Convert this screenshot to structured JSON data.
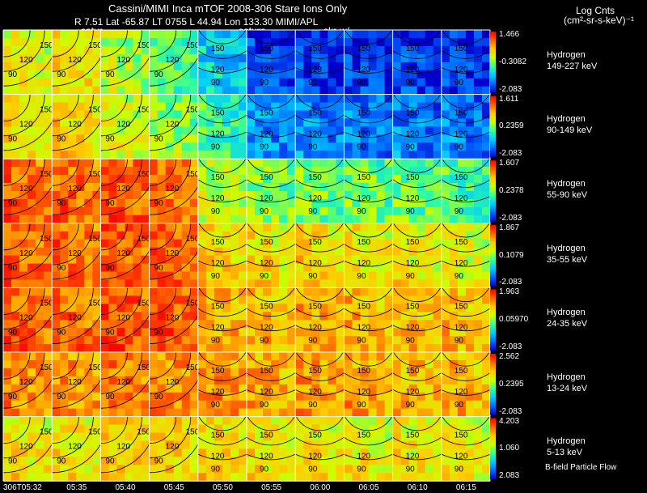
{
  "header": {
    "title_line": "Cassini/MIMI Inca mTOF  2008-306   Stare    Ions Only",
    "coords_line": "R      7.51 Lat -65.87 LT 0755 L         44.94 Lon       133.30   MIMI/APL",
    "overlay_saturn_1": "satur",
    "overlay_saturn_2": "saturn",
    "overlay_skr": "skr-w/"
  },
  "colorbar_title": {
    "line1": "Log Cnts",
    "line2": "(cm²-sr-s-keV)⁻¹"
  },
  "footer_note": "B-field Particle Flow",
  "contour_labels": [
    "90",
    "120",
    "150"
  ],
  "colors": {
    "background": "#000000",
    "grid": "#ffffff"
  },
  "chart_data": {
    "type": "heatmap",
    "title": "Cassini/MIMI Inca mTOF  2008-306   Stare    Ions Only",
    "time_labels": [
      "306T05:32",
      "05:35",
      "05:40",
      "05:45",
      "05:50",
      "05:55",
      "06:00",
      "06:05",
      "06:10",
      "06:15"
    ],
    "colorscale": [
      "#0000cc",
      "#0066ff",
      "#00ccff",
      "#33ff99",
      "#ccff00",
      "#ffcc00",
      "#ff6600",
      "#ff0000"
    ],
    "scale": "log",
    "panels": [
      {
        "species": "Hydrogen",
        "energy": "149-227 keV",
        "cmax": "1.466",
        "cmid": "-0.3082",
        "cmin": "-2.083",
        "intensity": [
          0.62,
          0.66,
          0.56,
          0.44,
          0.3,
          0.08,
          0.08,
          0.08,
          0.1,
          0.08
        ]
      },
      {
        "species": "Hydrogen",
        "energy": "90-149 keV",
        "cmax": "1.611",
        "cmid": "0.2359",
        "cmin": "-2.083",
        "intensity": [
          0.66,
          0.68,
          0.6,
          0.52,
          0.42,
          0.2,
          0.2,
          0.18,
          0.18,
          0.18
        ]
      },
      {
        "species": "Hydrogen",
        "energy": "55-90 keV",
        "cmax": "1.607",
        "cmid": "0.2378",
        "cmin": "-2.083",
        "intensity": [
          0.86,
          0.86,
          0.88,
          0.84,
          0.56,
          0.5,
          0.48,
          0.48,
          0.46,
          0.44
        ]
      },
      {
        "species": "Hydrogen",
        "energy": "35-55 keV",
        "cmax": "1.867",
        "cmid": "0.1079",
        "cmin": "-2.083",
        "intensity": [
          0.86,
          0.86,
          0.88,
          0.86,
          0.68,
          0.66,
          0.68,
          0.66,
          0.64,
          0.62
        ]
      },
      {
        "species": "Hydrogen",
        "energy": "24-35 keV",
        "cmax": "1.963",
        "cmid": "0.05970",
        "cmin": "-2.083",
        "intensity": [
          0.86,
          0.86,
          0.9,
          0.88,
          0.76,
          0.74,
          0.76,
          0.74,
          0.72,
          0.72
        ]
      },
      {
        "species": "Hydrogen",
        "energy": "13-24 keV",
        "cmax": "2.562",
        "cmid": "0.2395",
        "cmin": "-2.083",
        "intensity": [
          0.8,
          0.8,
          0.84,
          0.82,
          0.8,
          0.76,
          0.78,
          0.76,
          0.74,
          0.74
        ]
      },
      {
        "species": "Hydrogen",
        "energy": "5-13 keV",
        "cmax": "4.203",
        "cmid": "1.060",
        "cmin": "2.083",
        "intensity": [
          0.66,
          0.66,
          0.7,
          0.7,
          0.68,
          0.66,
          0.66,
          0.64,
          0.64,
          0.64
        ]
      }
    ]
  }
}
